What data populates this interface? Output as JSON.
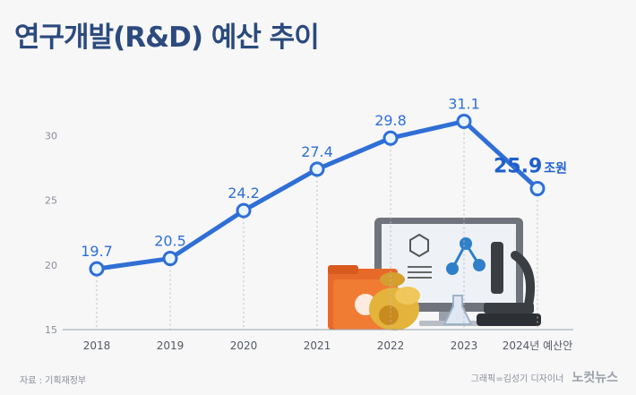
{
  "title": "연구개발(R&D) 예산 추이",
  "source": "자료 : 기획재정부",
  "credit": "그래픽=김성기 디자이너",
  "brand": "노컷뉴스",
  "highlight_unit": "조원",
  "colors": {
    "line": "#2f6fd6",
    "title": "#2b4a7d",
    "point_fill": "#e8f4ff"
  },
  "chart_data": {
    "type": "line",
    "categories": [
      "2018",
      "2019",
      "2020",
      "2021",
      "2022",
      "2023",
      "2024년 예산안"
    ],
    "values": [
      19.7,
      20.5,
      24.2,
      27.4,
      29.8,
      31.1,
      25.9
    ],
    "value_labels": [
      "19.7",
      "20.5",
      "24.2",
      "27.4",
      "29.8",
      "31.1",
      "25.9"
    ],
    "highlight_index": 6,
    "ylim": [
      15,
      33
    ],
    "yticks": [
      15,
      20,
      25,
      30
    ],
    "grid": false
  }
}
